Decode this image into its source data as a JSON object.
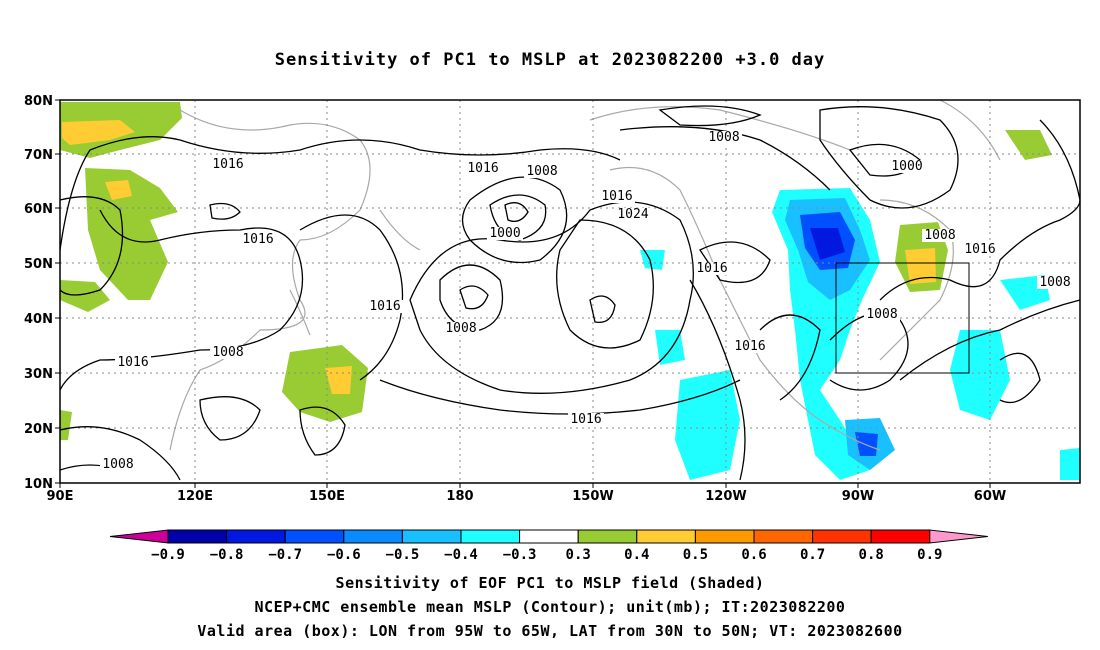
{
  "title": "Sensitivity of PC1 to MSLP at 2023082200 +3.0 day",
  "map": {
    "lon_labels": [
      "90E",
      "120E",
      "150E",
      "180",
      "150W",
      "120W",
      "90W",
      "60W"
    ],
    "lat_labels": [
      "10N",
      "20N",
      "30N",
      "40N",
      "50N",
      "60N",
      "70N",
      "80N"
    ],
    "valid_box": {
      "lon_from": "95W",
      "lon_to": "65W",
      "lat_from": "30N",
      "lat_to": "50N"
    },
    "contour_labels": [
      "1016",
      "1016",
      "1016",
      "1008",
      "1016",
      "1008",
      "1000",
      "1016",
      "1024",
      "1008",
      "1016",
      "1000",
      "1008",
      "1008",
      "1008",
      "1016",
      "1016",
      "1016",
      "1008",
      "1016",
      "1008"
    ]
  },
  "colorbar": {
    "labels": [
      "−0.9",
      "−0.8",
      "−0.7",
      "−0.6",
      "−0.5",
      "−0.4",
      "−0.3",
      "0.3",
      "0.4",
      "0.5",
      "0.6",
      "0.7",
      "0.8",
      "0.9"
    ],
    "colors": [
      "#0000a8",
      "#0018e0",
      "#0050ff",
      "#0a8aff",
      "#18c0ff",
      "#20ffff",
      "#ffffff",
      "#99cc33",
      "#ffcc33",
      "#ff9900",
      "#ff6600",
      "#ff3300",
      "#ff0000"
    ],
    "low_arrow_color": "#cc0099",
    "high_arrow_color": "#ff99cc"
  },
  "captions": {
    "line1": "Sensitivity of EOF PC1 to MSLP field (Shaded)",
    "line2": "NCEP+CMC ensemble mean MSLP (Contour); unit(mb); IT:2023082200",
    "line3": "Valid area (box): LON from 95W to 65W, LAT from 30N to 50N; VT: 2023082600"
  }
}
